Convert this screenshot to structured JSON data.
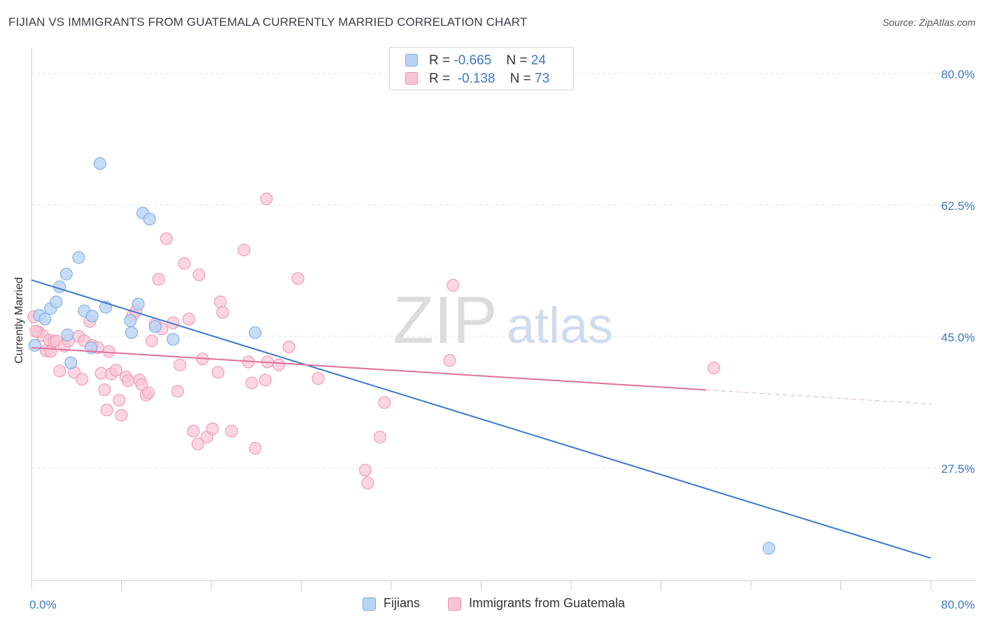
{
  "header": {
    "title": "FIJIAN VS IMMIGRANTS FROM GUATEMALA CURRENTLY MARRIED CORRELATION CHART",
    "source": "Source: ZipAtlas.com"
  },
  "watermark": {
    "zip": "ZIP",
    "atlas": "atlas"
  },
  "colors": {
    "fijians_fill": "#b8d3f5",
    "fijians_stroke": "#7aa8e0",
    "fijians_line": "#3a78d0",
    "guatemala_fill": "#f9c3d4",
    "guatemala_stroke": "#ee93b0",
    "guatemala_line": "#e07096",
    "tick_label": "#3b78c9",
    "grid": "#e3e3e3"
  },
  "legend_top": {
    "rows": [
      {
        "r_label": "R = ",
        "r_value": "-0.665",
        "n_label": "N = ",
        "n_value": "24"
      },
      {
        "r_label": "R = ",
        "r_value": "-0.138",
        "n_label": "N = ",
        "n_value": "73"
      }
    ]
  },
  "legend_bottom": {
    "series1": "Fijians",
    "series2": "Immigrants from Guatemala"
  },
  "chart_data": {
    "type": "scatter",
    "title": "FIJIAN VS IMMIGRANTS FROM GUATEMALA CURRENTLY MARRIED CORRELATION CHART",
    "xlabel": "",
    "ylabel": "Currently Married",
    "xlim": [
      0,
      80
    ],
    "ylim": [
      12.5,
      82.5
    ],
    "x_tick_labels": [
      "0.0%",
      "80.0%"
    ],
    "y_ticks": [
      27.5,
      45.0,
      62.5,
      80.0
    ],
    "y_tick_labels": [
      "27.5%",
      "45.0%",
      "62.5%",
      "80.0%"
    ],
    "grid": true,
    "legend_position": "top-center",
    "series": [
      {
        "name": "Fijians",
        "points": [
          [
            0.3,
            43.8
          ],
          [
            0.7,
            47.8
          ],
          [
            1.2,
            47.3
          ],
          [
            1.7,
            48.7
          ],
          [
            2.2,
            49.6
          ],
          [
            2.5,
            51.6
          ],
          [
            3.1,
            53.3
          ],
          [
            3.2,
            45.2
          ],
          [
            3.5,
            41.5
          ],
          [
            4.2,
            55.5
          ],
          [
            4.7,
            48.4
          ],
          [
            5.3,
            43.5
          ],
          [
            5.4,
            47.7
          ],
          [
            6.1,
            68.0
          ],
          [
            6.6,
            48.9
          ],
          [
            8.8,
            47.1
          ],
          [
            8.9,
            45.5
          ],
          [
            9.5,
            49.3
          ],
          [
            9.9,
            61.4
          ],
          [
            10.5,
            60.6
          ],
          [
            11.0,
            46.3
          ],
          [
            12.6,
            44.6
          ],
          [
            19.9,
            45.5
          ],
          [
            65.6,
            16.8
          ]
        ],
        "trend": {
          "x": [
            0,
            80
          ],
          "y": [
            52.5,
            15.5
          ]
        }
      },
      {
        "name": "Immigrants from Guatemala",
        "points": [
          [
            0.6,
            45.6
          ],
          [
            1.0,
            45.1
          ],
          [
            1.3,
            43.1
          ],
          [
            1.6,
            44.5
          ],
          [
            1.7,
            43.0
          ],
          [
            2.0,
            44.3
          ],
          [
            2.2,
            44.4
          ],
          [
            2.5,
            40.4
          ],
          [
            2.9,
            43.7
          ],
          [
            3.3,
            44.4
          ],
          [
            3.8,
            40.2
          ],
          [
            4.2,
            45.0
          ],
          [
            4.5,
            39.3
          ],
          [
            4.7,
            44.4
          ],
          [
            5.2,
            47.0
          ],
          [
            5.4,
            43.8
          ],
          [
            5.9,
            43.5
          ],
          [
            6.2,
            40.1
          ],
          [
            6.5,
            37.9
          ],
          [
            6.7,
            35.2
          ],
          [
            6.9,
            43.0
          ],
          [
            7.1,
            40.0
          ],
          [
            7.5,
            40.5
          ],
          [
            7.8,
            36.5
          ],
          [
            8.0,
            34.5
          ],
          [
            8.4,
            39.6
          ],
          [
            8.6,
            39.1
          ],
          [
            9.0,
            47.8
          ],
          [
            9.3,
            48.4
          ],
          [
            9.6,
            39.2
          ],
          [
            9.8,
            38.6
          ],
          [
            10.2,
            37.2
          ],
          [
            10.4,
            37.5
          ],
          [
            10.7,
            44.4
          ],
          [
            11.0,
            46.6
          ],
          [
            11.3,
            52.6
          ],
          [
            11.6,
            46.0
          ],
          [
            12.0,
            58.0
          ],
          [
            12.6,
            46.8
          ],
          [
            13.0,
            37.7
          ],
          [
            13.2,
            41.2
          ],
          [
            13.6,
            54.7
          ],
          [
            14.0,
            47.3
          ],
          [
            14.4,
            32.4
          ],
          [
            14.8,
            30.7
          ],
          [
            14.9,
            53.2
          ],
          [
            15.2,
            42.0
          ],
          [
            15.6,
            31.6
          ],
          [
            16.1,
            32.7
          ],
          [
            16.6,
            40.2
          ],
          [
            16.8,
            49.6
          ],
          [
            17.0,
            48.2
          ],
          [
            17.8,
            32.4
          ],
          [
            18.9,
            56.5
          ],
          [
            19.3,
            41.6
          ],
          [
            19.6,
            38.8
          ],
          [
            19.9,
            30.1
          ],
          [
            20.8,
            39.2
          ],
          [
            20.9,
            63.3
          ],
          [
            21.0,
            41.6
          ],
          [
            22.0,
            41.2
          ],
          [
            22.9,
            43.6
          ],
          [
            23.7,
            52.7
          ],
          [
            25.5,
            39.4
          ],
          [
            29.7,
            27.2
          ],
          [
            29.9,
            25.5
          ],
          [
            31.0,
            31.6
          ],
          [
            31.4,
            36.2
          ],
          [
            37.2,
            41.8
          ],
          [
            37.5,
            51.8
          ],
          [
            60.7,
            40.8
          ],
          [
            0.2,
            47.6
          ],
          [
            0.4,
            45.7
          ]
        ],
        "trend": {
          "x": [
            0,
            80
          ],
          "y": [
            43.5,
            36.0
          ],
          "solid_until_x": 60.0
        }
      }
    ]
  }
}
